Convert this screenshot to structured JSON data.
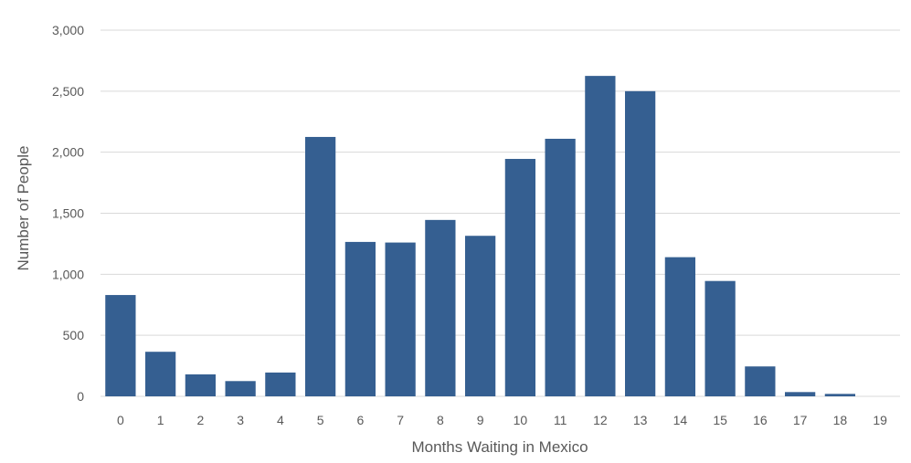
{
  "chart_data": {
    "type": "bar",
    "title": "",
    "xlabel": "Months Waiting in Mexico",
    "ylabel": "Number of People",
    "categories": [
      "0",
      "1",
      "2",
      "3",
      "4",
      "5",
      "6",
      "7",
      "8",
      "9",
      "10",
      "11",
      "12",
      "13",
      "14",
      "15",
      "16",
      "17",
      "18",
      "19"
    ],
    "values": [
      830,
      365,
      180,
      125,
      195,
      2125,
      1265,
      1260,
      1445,
      1315,
      1945,
      2110,
      2625,
      2500,
      1140,
      945,
      245,
      35,
      20,
      0
    ],
    "ylim": [
      0,
      3000
    ],
    "yticks": [
      0,
      500,
      1000,
      1500,
      2000,
      2500,
      3000
    ],
    "ytick_labels": [
      "0",
      "500",
      "1,000",
      "1,500",
      "2,000",
      "2,500",
      "3,000"
    ],
    "grid": "horizontal",
    "legend": "none",
    "colors": {
      "bar": "#355F91",
      "grid": "#D9D9D9",
      "text": "#595959"
    }
  }
}
